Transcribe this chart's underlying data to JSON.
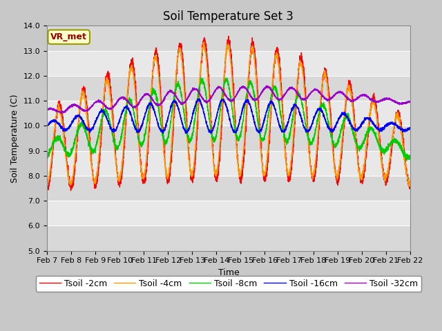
{
  "title": "Soil Temperature Set 3",
  "xlabel": "Time",
  "ylabel": "Soil Temperature (C)",
  "ylim": [
    5.0,
    14.0
  ],
  "yticks": [
    5.0,
    6.0,
    7.0,
    8.0,
    9.0,
    10.0,
    11.0,
    12.0,
    13.0,
    14.0
  ],
  "xtick_labels": [
    "Feb 7",
    "Feb 8",
    "Feb 9",
    "Feb 10",
    "Feb 11",
    "Feb 12",
    "Feb 13",
    "Feb 14",
    "Feb 15",
    "Feb 16",
    "Feb 17",
    "Feb 18",
    "Feb 19",
    "Feb 20",
    "Feb 21",
    "Feb 22"
  ],
  "legend_labels": [
    "Tsoil -2cm",
    "Tsoil -4cm",
    "Tsoil -8cm",
    "Tsoil -16cm",
    "Tsoil -32cm"
  ],
  "colors": [
    "#ff0000",
    "#ff9900",
    "#00cc00",
    "#0000ff",
    "#9900cc"
  ],
  "annotation_text": "VR_met",
  "annotation_bgcolor": "#ffffcc",
  "annotation_edgecolor": "#999900",
  "annotation_textcolor": "#990000",
  "title_fontsize": 12,
  "axis_fontsize": 9,
  "tick_fontsize": 8,
  "legend_fontsize": 9,
  "n_points": 3600,
  "days": 15
}
